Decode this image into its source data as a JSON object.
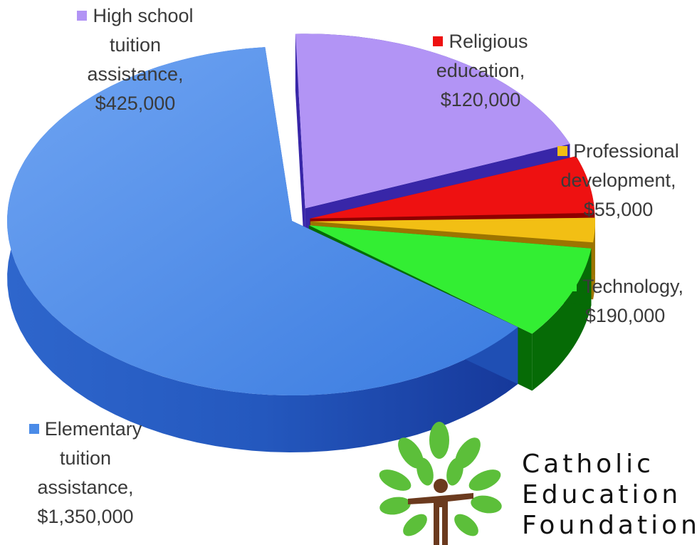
{
  "chart_data": {
    "type": "pie",
    "style": "3d-exploded",
    "title": "",
    "slices": [
      {
        "label": "Elementary tuition assistance",
        "value": 1350000,
        "display": "$1,350,000",
        "color": "#4a8be8",
        "side_color": "#1f4fb4"
      },
      {
        "label": "High school tuition assistance",
        "value": 425000,
        "display": "$425,000",
        "color": "#b294f5",
        "side_color": "#3826a8"
      },
      {
        "label": "Religious education",
        "value": 120000,
        "display": "$120,000",
        "color": "#ee1111",
        "side_color": "#8e0000"
      },
      {
        "label": "Professional development",
        "value": 55000,
        "display": "$55,000",
        "color": "#f2bf14",
        "side_color": "#9c7400"
      },
      {
        "label": "Technology",
        "value": 190000,
        "display": "$190,000",
        "color": "#33ee33",
        "side_color": "#066b06"
      }
    ],
    "labels": {
      "high": [
        "High school",
        "tuition",
        "assistance,",
        "$425,000"
      ],
      "religious": [
        "Religious",
        "education,",
        "$120,000"
      ],
      "professional": [
        "Professional",
        "development,",
        "$55,000"
      ],
      "technology": [
        "Technology,",
        "$190,000"
      ],
      "elementary": [
        "Elementary",
        "tuition",
        "assistance,",
        "$1,350,000"
      ]
    }
  },
  "logo": {
    "line1": "Catholic",
    "line2": "Education",
    "line3": "Foundation",
    "leaf_color": "#5cbf3a",
    "figure_color": "#6b3a1e"
  }
}
